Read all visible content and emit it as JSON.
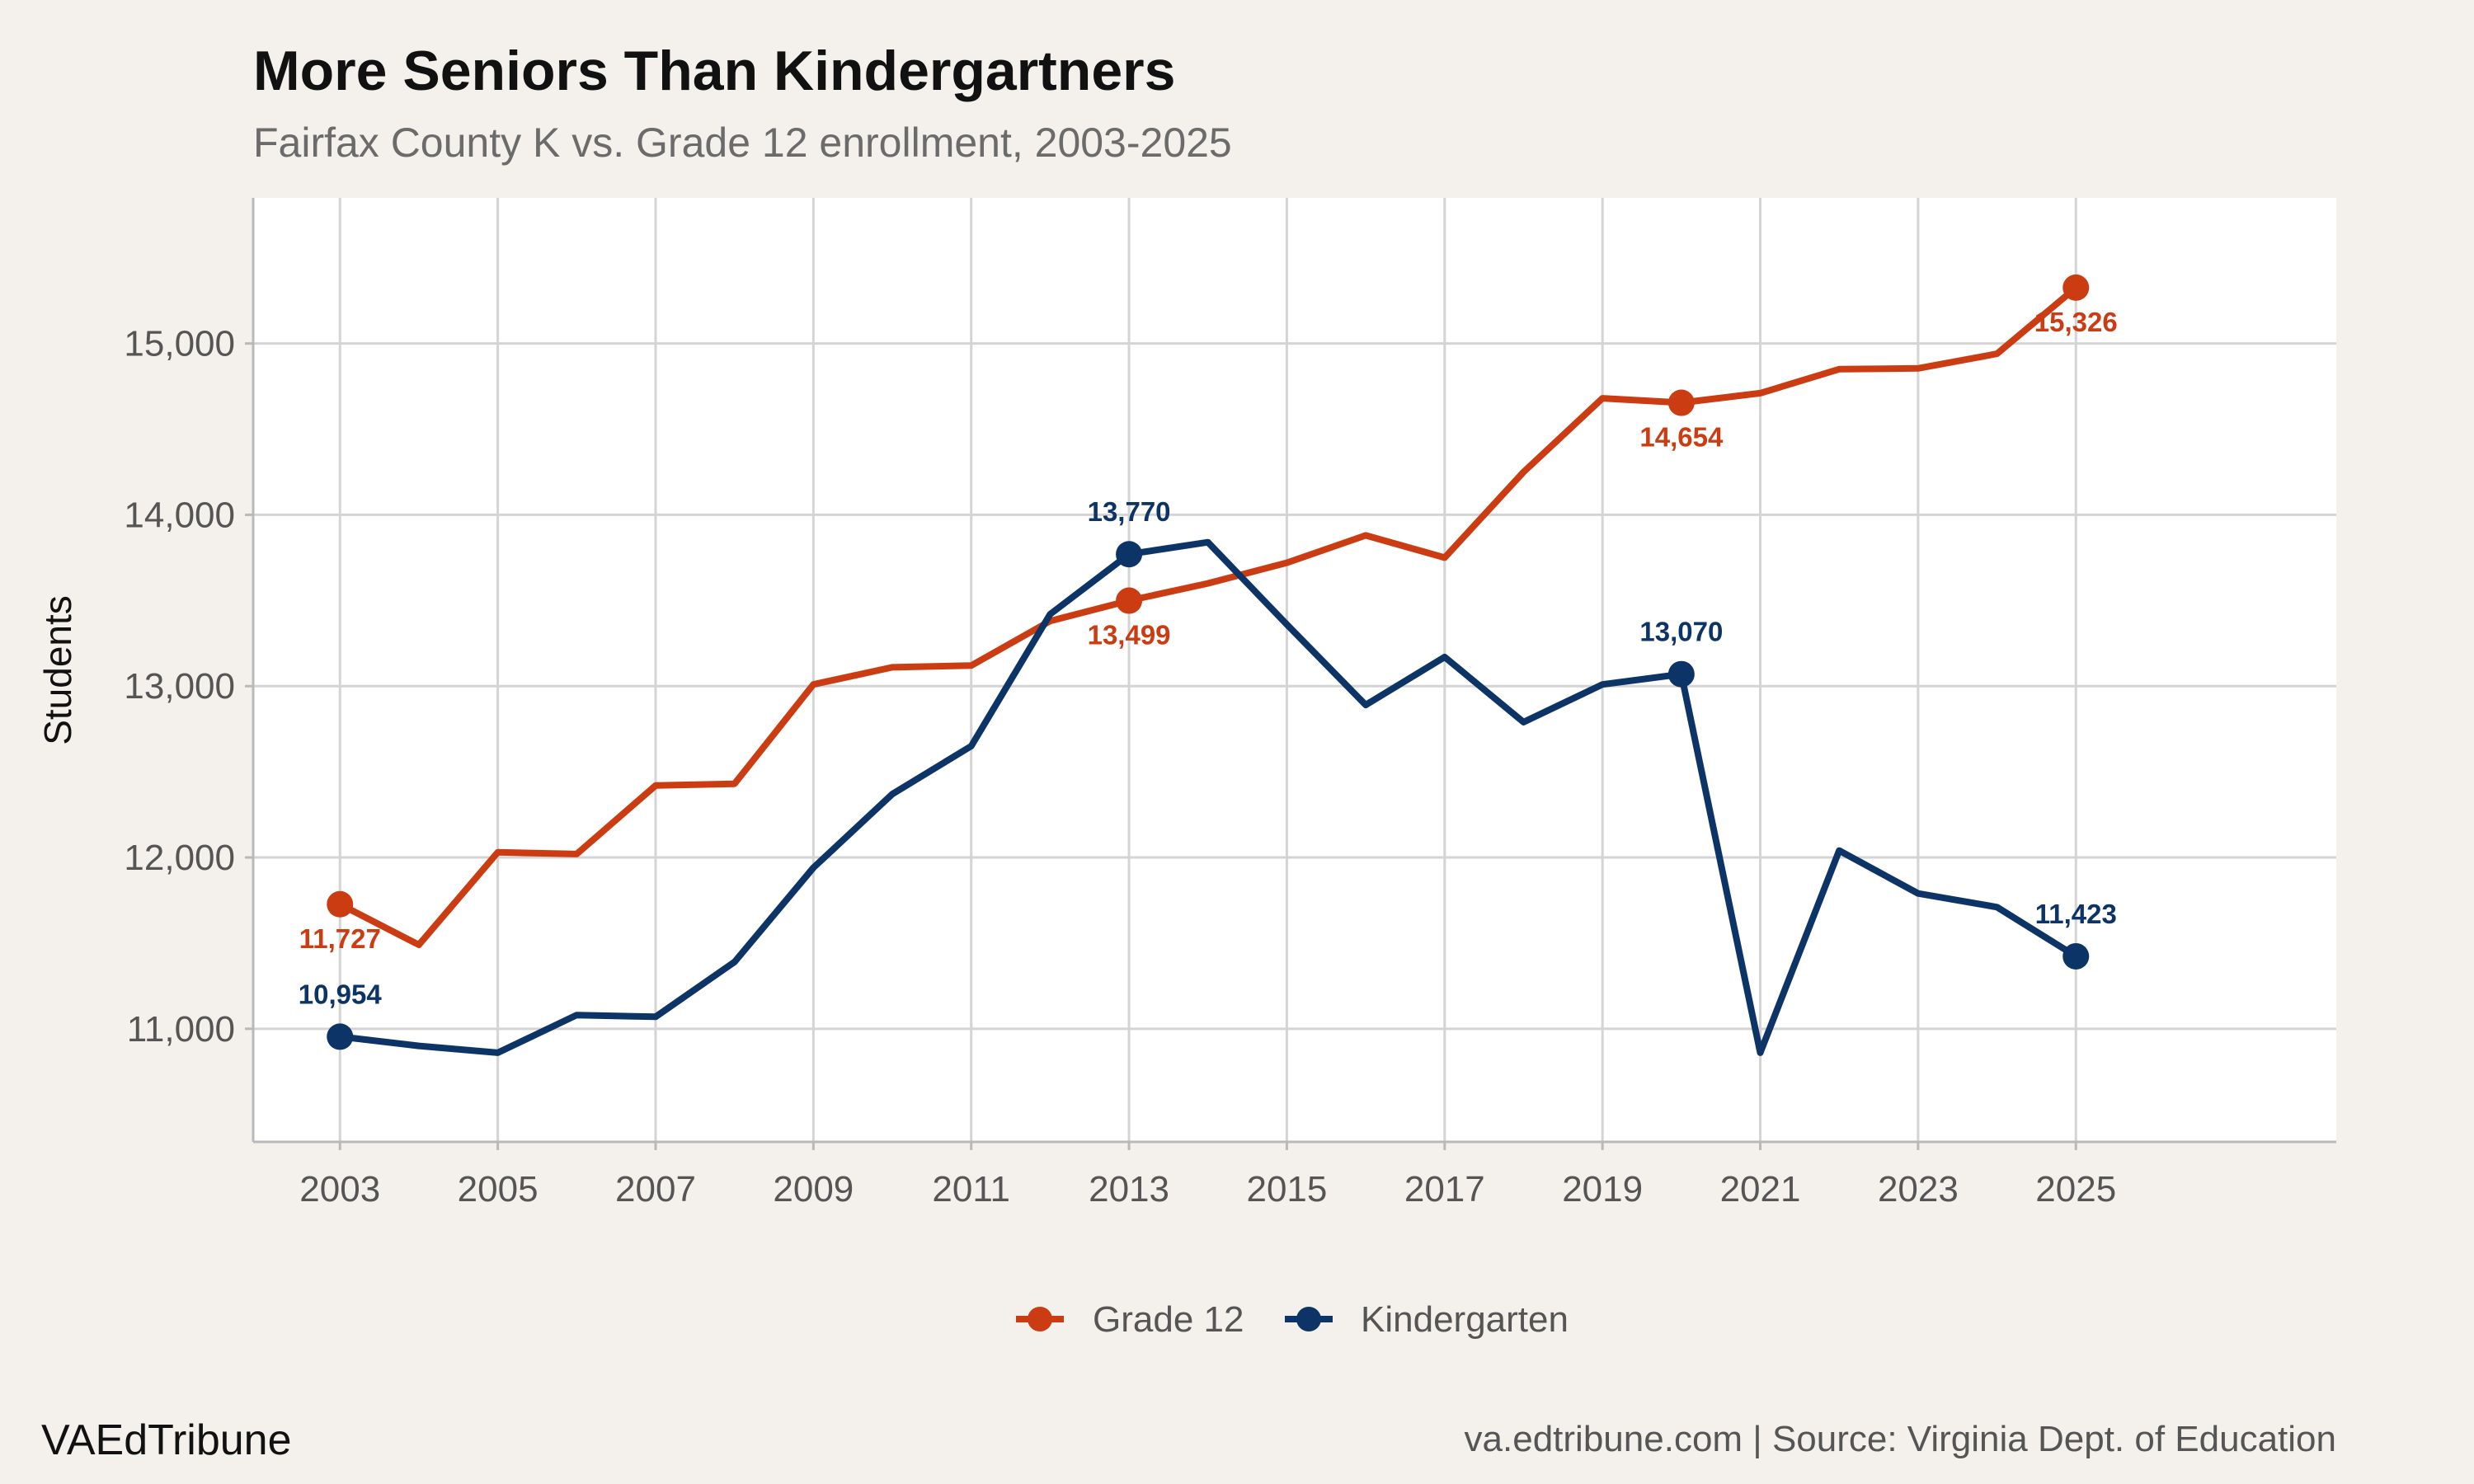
{
  "header": {
    "title": "More Seniors Than Kindergartners",
    "subtitle": "Fairfax County K vs. Grade 12 enrollment, 2003-2025"
  },
  "footer": {
    "brand": "VAEdTribune",
    "source": "va.edtribune.com | Source: Virginia Dept. of Education"
  },
  "legend": {
    "position": "bottom",
    "items": [
      {
        "label": "Grade 12",
        "color": "#cc3c13"
      },
      {
        "label": "Kindergarten",
        "color": "#0d3466"
      }
    ]
  },
  "chart_data": {
    "type": "line",
    "ylabel": "Students",
    "xlabel": "",
    "xlim": [
      2001.9,
      2028.3
    ],
    "ylim": [
      10340,
      15850
    ],
    "x_ticks": [
      2003,
      2005,
      2007,
      2009,
      2011,
      2013,
      2015,
      2017,
      2019,
      2021,
      2023,
      2025
    ],
    "y_ticks": [
      11000,
      12000,
      13000,
      14000,
      15000
    ],
    "y_tick_labels": [
      "11,000",
      "12,000",
      "13,000",
      "14,000",
      "15,000"
    ],
    "grid": true,
    "x": [
      2003,
      2004,
      2005,
      2006,
      2007,
      2008,
      2009,
      2010,
      2011,
      2012,
      2013,
      2014,
      2015,
      2016,
      2017,
      2018,
      2019,
      2020,
      2021,
      2022,
      2023,
      2024,
      2025
    ],
    "series": [
      {
        "name": "Grade 12",
        "color": "#cc3c13",
        "values": [
          11727,
          11490,
          12030,
          12020,
          12420,
          12430,
          13010,
          13110,
          13120,
          13380,
          13499,
          13600,
          13720,
          13880,
          13750,
          14250,
          14680,
          14654,
          14710,
          14850,
          14855,
          14940,
          15326
        ],
        "highlights": [
          {
            "year": 2003,
            "value": 11727,
            "label": "11,727",
            "label_position": "below"
          },
          {
            "year": 2013,
            "value": 13499,
            "label": "13,499",
            "label_position": "below"
          },
          {
            "year": 2020,
            "value": 14654,
            "label": "14,654",
            "label_position": "below"
          },
          {
            "year": 2025,
            "value": 15326,
            "label": "15,326",
            "label_position": "below"
          }
        ]
      },
      {
        "name": "Kindergarten",
        "color": "#0d3466",
        "values": [
          10954,
          10900,
          10860,
          11080,
          11070,
          11390,
          11940,
          12370,
          12650,
          13420,
          13770,
          13840,
          13360,
          12890,
          13170,
          12790,
          13010,
          13070,
          10860,
          12040,
          11790,
          11710,
          11423
        ],
        "highlights": [
          {
            "year": 2003,
            "value": 10954,
            "label": "10,954",
            "label_position": "above"
          },
          {
            "year": 2013,
            "value": 13770,
            "label": "13,770",
            "label_position": "above"
          },
          {
            "year": 2020,
            "value": 13070,
            "label": "13,070",
            "label_position": "above"
          },
          {
            "year": 2025,
            "value": 11423,
            "label": "11,423",
            "label_position": "above"
          }
        ]
      }
    ]
  }
}
